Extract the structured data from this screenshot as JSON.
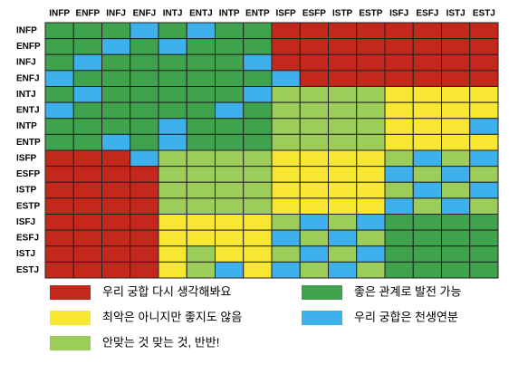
{
  "chart_data": {
    "type": "matrix",
    "columns": [
      "INFP",
      "ENFP",
      "INFJ",
      "ENFJ",
      "INTJ",
      "ENTJ",
      "INTP",
      "ENTP",
      "ISFP",
      "ESFP",
      "ISTP",
      "ESTP",
      "ISFJ",
      "ESFJ",
      "ISTJ",
      "ESTJ"
    ],
    "rows": [
      "INFP",
      "ENFP",
      "INFJ",
      "ENFJ",
      "INTJ",
      "ENTJ",
      "INTP",
      "ENTP",
      "ISFP",
      "ESFP",
      "ISTP",
      "ESTP",
      "ISFJ",
      "ESFJ",
      "ISTJ",
      "ESTJ"
    ],
    "cells": [
      "GGGBGBGGRRRRRRRR",
      "GGBGBGGGRRRRRRRR",
      "GBGGGGGBRRRRRRRR",
      "BGGGGGGGBRRRRRRR",
      "GBGGGGGBLLLLYYYY",
      "BGGGGGBGLLLLYYYY",
      "GGGGBGGGLLLLYYYB",
      "GGBGBGGGLLLLYYYY",
      "RRRBLLLLYYYYLBLB",
      "RRRRLLLLYYYYBLBL",
      "RRRRLLLLYYYYLBLB",
      "RRRRLLLLYYYYBLBL",
      "RRRRYYYYLBLBGGGG",
      "RRRRYYYYBLBLGGGG",
      "RRRRYLYYLBLBGGGG",
      "RRRRYLBYBLBLGGGG"
    ],
    "legend": [
      {
        "key": "R",
        "color": "#c4281c",
        "label": "우리 궁합 다시 생각해봐요"
      },
      {
        "key": "G",
        "color": "#3fa34d",
        "label": "좋은 관계로 발전 가능"
      },
      {
        "key": "Y",
        "color": "#f7e733",
        "label": "최악은 아니지만 좋지도 않음"
      },
      {
        "key": "B",
        "color": "#3eb1ec",
        "label": "우리 궁합은 천생연분"
      },
      {
        "key": "L",
        "color": "#9ccc5a",
        "label": "안맞는 것 맞는 것, 반반!"
      }
    ]
  }
}
